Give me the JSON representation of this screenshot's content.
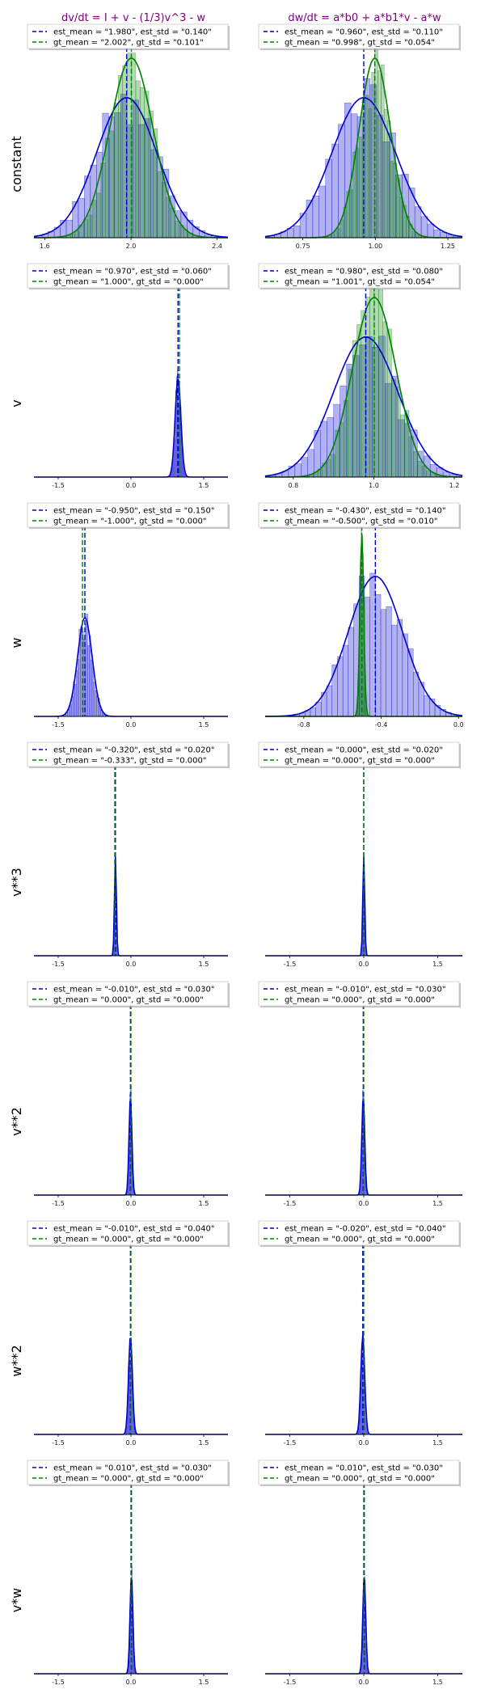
{
  "figure": {
    "column_titles": [
      "dv/dt = I + v - (1/3)v^3 - w",
      "dw/dt = a*b0 + a*b1*v - a*w"
    ],
    "row_labels": [
      "constant",
      "v",
      "w",
      "v**3",
      "v**2",
      "w**2",
      "v*w"
    ],
    "colors": {
      "est": "#0000cc",
      "gt": "#008000",
      "title": "#800080"
    }
  },
  "chart_data": [
    {
      "type": "histogram",
      "row": "constant",
      "column": 0,
      "xlim": [
        1.55,
        2.45
      ],
      "xticks": [
        "1.6",
        "2.0",
        "2.4"
      ],
      "tick_values": [
        1.6,
        2.0,
        2.4
      ],
      "est": {
        "mean": 1.98,
        "std": 0.14,
        "label": "est_mean = \"1.980\", est_std = \"0.140\""
      },
      "gt": {
        "mean": 2.002,
        "std": 0.101,
        "label": "gt_mean = \"2.002\", gt_std = \"0.101\""
      }
    },
    {
      "type": "histogram",
      "row": "constant",
      "column": 1,
      "xlim": [
        0.62,
        1.3
      ],
      "xticks": [
        "0.75",
        "1.00",
        "1.25"
      ],
      "tick_values": [
        0.75,
        1.0,
        1.25
      ],
      "est": {
        "mean": 0.96,
        "std": 0.11,
        "label": "est_mean = \"0.960\", est_std = \"0.110\""
      },
      "gt": {
        "mean": 0.998,
        "std": 0.054,
        "label": "gt_mean = \"0.998\", gt_std = \"0.054\""
      }
    },
    {
      "type": "histogram",
      "row": "v",
      "column": 0,
      "xlim": [
        -2.0,
        2.0
      ],
      "xticks": [
        "-1.5",
        "0.0",
        "1.5"
      ],
      "tick_values": [
        -1.5,
        0.0,
        1.5
      ],
      "est": {
        "mean": 0.97,
        "std": 0.06,
        "label": "est_mean = \"0.970\", est_std = \"0.060\""
      },
      "gt": {
        "mean": 1.0,
        "std": 0.0,
        "label": "gt_mean = \"1.000\", gt_std = \"0.000\""
      }
    },
    {
      "type": "histogram",
      "row": "v",
      "column": 1,
      "xlim": [
        0.73,
        1.22
      ],
      "xticks": [
        "0.8",
        "1.0",
        "1.2"
      ],
      "tick_values": [
        0.8,
        1.0,
        1.2
      ],
      "est": {
        "mean": 0.98,
        "std": 0.08,
        "label": "est_mean = \"0.980\", est_std = \"0.080\""
      },
      "gt": {
        "mean": 1.001,
        "std": 0.054,
        "label": "gt_mean = \"1.001\", gt_std = \"0.054\""
      }
    },
    {
      "type": "histogram",
      "row": "w",
      "column": 0,
      "xlim": [
        -2.0,
        2.0
      ],
      "xticks": [
        "-1.5",
        "0.0",
        "1.5"
      ],
      "tick_values": [
        -1.5,
        0.0,
        1.5
      ],
      "est": {
        "mean": -0.95,
        "std": 0.15,
        "label": "est_mean = \"-0.950\", est_std = \"0.150\""
      },
      "gt": {
        "mean": -1.0,
        "std": 0.0,
        "label": "gt_mean = \"-1.000\", gt_std = \"0.000\""
      }
    },
    {
      "type": "histogram",
      "row": "w",
      "column": 1,
      "xlim": [
        -1.0,
        0.02
      ],
      "xticks": [
        "-0.8",
        "-0.4",
        "0.0"
      ],
      "tick_values": [
        -0.8,
        -0.4,
        0.0
      ],
      "est": {
        "mean": -0.43,
        "std": 0.14,
        "label": "est_mean = \"-0.430\", est_std = \"0.140\""
      },
      "gt": {
        "mean": -0.5,
        "std": 0.01,
        "label": "gt_mean = \"-0.500\", gt_std = \"0.010\""
      }
    },
    {
      "type": "histogram",
      "row": "v**3",
      "column": 0,
      "xlim": [
        -2.0,
        2.0
      ],
      "xticks": [
        "-1.5",
        "0.0",
        "1.5"
      ],
      "tick_values": [
        -1.5,
        0.0,
        1.5
      ],
      "est": {
        "mean": -0.32,
        "std": 0.02,
        "label": "est_mean = \"-0.320\", est_std = \"0.020\""
      },
      "gt": {
        "mean": -0.333,
        "std": 0.0,
        "label": "gt_mean = \"-0.333\", gt_std = \"0.000\""
      }
    },
    {
      "type": "histogram",
      "row": "v**3",
      "column": 1,
      "xlim": [
        -2.0,
        2.0
      ],
      "xticks": [
        "-1.5",
        "0.0",
        "1.5"
      ],
      "tick_values": [
        -1.5,
        0.0,
        1.5
      ],
      "est": {
        "mean": 0.0,
        "std": 0.02,
        "label": "est_mean = \"0.000\", est_std = \"0.020\""
      },
      "gt": {
        "mean": 0.0,
        "std": 0.0,
        "label": "gt_mean = \"0.000\", gt_std = \"0.000\""
      }
    },
    {
      "type": "histogram",
      "row": "v**2",
      "column": 0,
      "xlim": [
        -2.0,
        2.0
      ],
      "xticks": [
        "-1.5",
        "0.0",
        "1.5"
      ],
      "tick_values": [
        -1.5,
        0.0,
        1.5
      ],
      "est": {
        "mean": -0.01,
        "std": 0.03,
        "label": "est_mean = \"-0.010\", est_std = \"0.030\""
      },
      "gt": {
        "mean": 0.0,
        "std": 0.0,
        "label": "gt_mean = \"0.000\", gt_std = \"0.000\""
      }
    },
    {
      "type": "histogram",
      "row": "v**2",
      "column": 1,
      "xlim": [
        -2.0,
        2.0
      ],
      "xticks": [
        "-1.5",
        "0.0",
        "1.5"
      ],
      "tick_values": [
        -1.5,
        0.0,
        1.5
      ],
      "est": {
        "mean": -0.01,
        "std": 0.03,
        "label": "est_mean = \"-0.010\", est_std = \"0.030\""
      },
      "gt": {
        "mean": 0.0,
        "std": 0.0,
        "label": "gt_mean = \"0.000\", gt_std = \"0.000\""
      }
    },
    {
      "type": "histogram",
      "row": "w**2",
      "column": 0,
      "xlim": [
        -2.0,
        2.0
      ],
      "xticks": [
        "-1.5",
        "0.0",
        "1.5"
      ],
      "tick_values": [
        -1.5,
        0.0,
        1.5
      ],
      "est": {
        "mean": -0.01,
        "std": 0.04,
        "label": "est_mean = \"-0.010\", est_std = \"0.040\""
      },
      "gt": {
        "mean": 0.0,
        "std": 0.0,
        "label": "gt_mean = \"0.000\", gt_std = \"0.000\""
      }
    },
    {
      "type": "histogram",
      "row": "w**2",
      "column": 1,
      "xlim": [
        -2.0,
        2.0
      ],
      "xticks": [
        "-1.5",
        "0.0",
        "1.5"
      ],
      "tick_values": [
        -1.5,
        0.0,
        1.5
      ],
      "est": {
        "mean": -0.02,
        "std": 0.04,
        "label": "est_mean = \"-0.020\", est_std = \"0.040\""
      },
      "gt": {
        "mean": 0.0,
        "std": 0.0,
        "label": "gt_mean = \"0.000\", gt_std = \"0.000\""
      }
    },
    {
      "type": "histogram",
      "row": "v*w",
      "column": 0,
      "xlim": [
        -2.0,
        2.0
      ],
      "xticks": [
        "-1.5",
        "0.0",
        "1.5"
      ],
      "tick_values": [
        -1.5,
        0.0,
        1.5
      ],
      "est": {
        "mean": 0.01,
        "std": 0.03,
        "label": "est_mean = \"0.010\", est_std = \"0.030\""
      },
      "gt": {
        "mean": 0.0,
        "std": 0.0,
        "label": "gt_mean = \"0.000\", gt_std = \"0.000\""
      }
    },
    {
      "type": "histogram",
      "row": "v*w",
      "column": 1,
      "xlim": [
        -2.0,
        2.0
      ],
      "xticks": [
        "-1.5",
        "0.0",
        "1.5"
      ],
      "tick_values": [
        -1.5,
        0.0,
        1.5
      ],
      "est": {
        "mean": 0.01,
        "std": 0.03,
        "label": "est_mean = \"0.010\", est_std = \"0.030\""
      },
      "gt": {
        "mean": 0.0,
        "std": 0.0,
        "label": "gt_mean = \"0.000\", gt_std = \"0.000\""
      }
    }
  ]
}
